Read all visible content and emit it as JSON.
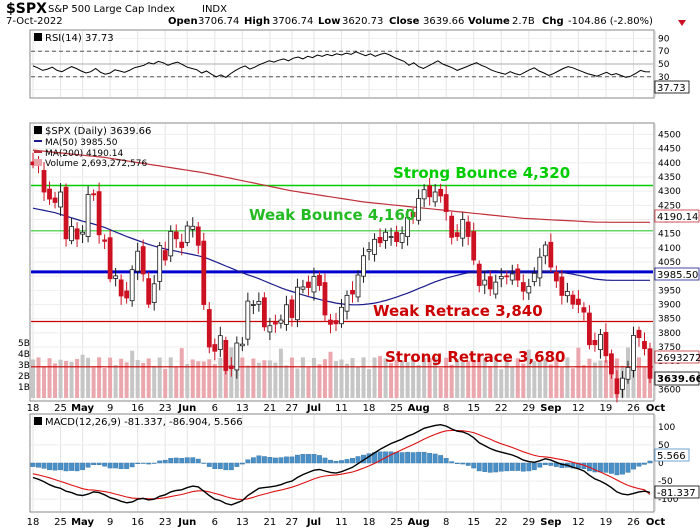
{
  "header": {
    "symbol": "$SPX",
    "name": "S&P 500 Large Cap Index",
    "exchange": "INDX",
    "date": "7-Oct-2022",
    "open_label": "Open",
    "open": "3706.74",
    "high_label": "High",
    "high": "3706.74",
    "low_label": "Low",
    "low": "3620.73",
    "close_label": "Close",
    "close": "3639.66",
    "volume_label": "Volume",
    "volume": "2.7B",
    "chg_label": "Chg",
    "chg": "-104.86 (-2.80%)",
    "chg_icon": "down-triangle-icon"
  },
  "colors": {
    "up": "#1a1a1a",
    "down": "#cc1122",
    "ma50": "#1a1a8c",
    "ma200": "#c0303a",
    "strong": "#00cc00",
    "weak": "#33cc33",
    "support_blue": "#0000cc",
    "retrace": "#cc0000",
    "macd_hist": "#4a90c8"
  },
  "chart_data": [
    {
      "panel": "rsi",
      "type": "line",
      "legend": "RSI(14) 37.73",
      "ylim": [
        0,
        100
      ],
      "yticks": [
        "90",
        "70",
        "50",
        "30",
        "10"
      ],
      "levels": [
        70,
        30
      ],
      "last_label": "37.73",
      "values": [
        47,
        44,
        40,
        42,
        45,
        40,
        38,
        42,
        46,
        43,
        39,
        36,
        38,
        43,
        37,
        34,
        36,
        41,
        39,
        37,
        40,
        44,
        46,
        48,
        52,
        50,
        54,
        52,
        48,
        51,
        53,
        49,
        45,
        43,
        41,
        36,
        39,
        34,
        30,
        33,
        29,
        35,
        40,
        44,
        47,
        42,
        45,
        49,
        52,
        55,
        53,
        56,
        58,
        55,
        59,
        61,
        58,
        62,
        60,
        64,
        62,
        65,
        63,
        66,
        64,
        67,
        65,
        69,
        66,
        63,
        66,
        62,
        65,
        67,
        64,
        60,
        57,
        54,
        48,
        52,
        46,
        43,
        47,
        51,
        55,
        50,
        47,
        44,
        40,
        43,
        46,
        49,
        52,
        48,
        45,
        41,
        38,
        36,
        34,
        38,
        35,
        33,
        37,
        41,
        44,
        39,
        36,
        32,
        35,
        39,
        43,
        46,
        44,
        41,
        38,
        35,
        33,
        31,
        34,
        37,
        33,
        35,
        32,
        29,
        31,
        35,
        40,
        38,
        37.73
      ]
    },
    {
      "panel": "price",
      "type": "candlestick",
      "legend": {
        "symbol": "$SPX (Daily) 3639.66",
        "ma50": "MA(50) 3985.50",
        "ma200": "MA(200) 4190.14",
        "volume": "Volume 2,693,272,576"
      },
      "ylim": [
        3570,
        4530
      ],
      "yticks": [
        "4500",
        "4450",
        "4400",
        "4350",
        "4300",
        "4250",
        "4200",
        "4150",
        "4100",
        "4050",
        "4000",
        "3950",
        "3900",
        "3850",
        "3800",
        "3750",
        "3700",
        "3650",
        "3600"
      ],
      "volume_ticks": [
        "5B",
        "4B",
        "3B",
        "2B",
        "1B"
      ],
      "right_labels": {
        "ma200": "4190.14",
        "ma50": "3985.50",
        "volume": "2693272",
        "close": "3639.66"
      },
      "levels": [
        {
          "label": "Strong Bounce 4,320",
          "value": 4320,
          "style": "strong"
        },
        {
          "label": "Weak Bounce 4,160",
          "value": 4160,
          "style": "weak"
        },
        {
          "label": "",
          "value": 4015,
          "style": "support_blue"
        },
        {
          "label": "Weak Retrace 3,840",
          "value": 3840,
          "style": "retrace"
        },
        {
          "label": "Strong Retrace 3,680",
          "value": 3680,
          "style": "retrace"
        }
      ],
      "x_ticks": [
        "18",
        "25",
        "May",
        "9",
        "16",
        "23",
        "Jun",
        "6",
        "13",
        "21",
        "27",
        "Jul",
        "11",
        "18",
        "25",
        "Aug",
        "8",
        "15",
        "22",
        "29",
        "Sep",
        "12",
        "19",
        "26",
        "Oct"
      ],
      "x_tick_index": [
        0,
        5,
        9,
        14,
        19,
        24,
        28,
        33,
        38,
        43,
        47,
        51,
        56,
        61,
        66,
        70,
        75,
        80,
        85,
        90,
        94,
        99,
        104,
        109,
        113
      ],
      "closes": [
        4393,
        4391,
        4297,
        4272,
        4260,
        4297,
        4132,
        4175,
        4131,
        4155,
        4288,
        4287,
        4146,
        4123,
        3991,
        4001,
        3930,
        3923,
        4023,
        4088,
        4008,
        3901,
        3973,
        4108,
        4057,
        4158,
        4132,
        4101,
        4177,
        4176,
        4109,
        3900,
        3750,
        3735,
        3790,
        3667,
        3674,
        3764,
        3760,
        3912,
        3900,
        3911,
        3821,
        3825,
        3831,
        3845,
        3899,
        3854,
        3961,
        3962,
        3960,
        3999,
        3967,
        3863,
        3830,
        3832,
        3890,
        3932,
        3937,
        4004,
        4072,
        4094,
        4130,
        4118,
        4155,
        4140,
        4122,
        4151,
        4207,
        4210,
        4274,
        4305,
        4280,
        4297,
        4283,
        4228,
        4137,
        4140,
        4200,
        4140,
        4057,
        3967,
        3986,
        3955,
        3979,
        3999,
        4001,
        4008,
        3986,
        3947,
        3964,
        4010,
        4067,
        4110,
        4032,
        3983,
        3932,
        3946,
        3901,
        3900,
        3873,
        3758,
        3758,
        3794,
        3719,
        3655,
        3585,
        3640,
        3678,
        3791,
        3783,
        3744,
        3639.66
      ],
      "ma50": [
        4240,
        4236,
        4232,
        4228,
        4224,
        4218,
        4212,
        4206,
        4200,
        4194,
        4189,
        4184,
        4178,
        4172,
        4164,
        4156,
        4148,
        4140,
        4133,
        4126,
        4119,
        4112,
        4106,
        4101,
        4096,
        4092,
        4088,
        4084,
        4080,
        4076,
        4072,
        4067,
        4060,
        4052,
        4044,
        4036,
        4028,
        4020,
        4012,
        4005,
        3998,
        3991,
        3983,
        3975,
        3967,
        3959,
        3952,
        3946,
        3940,
        3934,
        3928,
        3923,
        3918,
        3913,
        3909,
        3905,
        3902,
        3900,
        3899,
        3899,
        3900,
        3902,
        3905,
        3909,
        3914,
        3920,
        3926,
        3933,
        3940,
        3948,
        3956,
        3964,
        3972,
        3980,
        3987,
        3993,
        3998,
        4003,
        4008,
        4012,
        4015,
        4017,
        4018,
        4019,
        4019,
        4018,
        4017,
        4016,
        4015,
        4014,
        4014,
        4014,
        4015,
        4016,
        4016,
        4015,
        4013,
        4010,
        4007,
        4003,
        3999,
        3994,
        3990,
        3988,
        3986,
        3985.5,
        3985.5,
        3985.5,
        3985.5,
        3985.5,
        3985.5,
        3985.5,
        3985.5
      ],
      "ma200": [
        4445,
        4443,
        4441,
        4439,
        4437,
        4435,
        4433,
        4431,
        4429,
        4427,
        4425,
        4423,
        4421,
        4419,
        4416,
        4413,
        4410,
        4407,
        4404,
        4401,
        4398,
        4395,
        4392,
        4389,
        4386,
        4383,
        4380,
        4377,
        4374,
        4371,
        4368,
        4365,
        4361,
        4357,
        4353,
        4349,
        4345,
        4341,
        4337,
        4333,
        4329,
        4325,
        4321,
        4317,
        4313,
        4309,
        4305,
        4301,
        4298,
        4295,
        4292,
        4289,
        4286,
        4283,
        4280,
        4277,
        4274,
        4271,
        4268,
        4265,
        4262,
        4260,
        4258,
        4256,
        4254,
        4252,
        4250,
        4248,
        4246,
        4244,
        4242,
        4240,
        4238,
        4236,
        4234,
        4232,
        4230,
        4228,
        4226,
        4224,
        4222,
        4220,
        4218,
        4216,
        4214,
        4212,
        4210,
        4208,
        4206,
        4204,
        4203,
        4202,
        4201,
        4200,
        4199,
        4198,
        4197,
        4196,
        4195,
        4194,
        4193,
        4192,
        4191,
        4190.5,
        4190.3,
        4190.2,
        4190.14,
        4190.14,
        4190.14,
        4190.14,
        4190.14,
        4190.14,
        4190.14
      ]
    },
    {
      "panel": "macd",
      "type": "line",
      "legend": "MACD(12,26,9) -81.337, -86.904, 5.566",
      "ylim": [
        -130,
        130
      ],
      "yticks": [
        "100",
        "50",
        "0",
        "-50",
        "-100"
      ],
      "right_labels": {
        "hist": "5.566",
        "macd": "-81.337"
      },
      "macd": [
        -40,
        -45,
        -52,
        -60,
        -66,
        -70,
        -78,
        -82,
        -88,
        -90,
        -86,
        -80,
        -82,
        -88,
        -96,
        -100,
        -106,
        -110,
        -108,
        -100,
        -98,
        -102,
        -100,
        -92,
        -88,
        -80,
        -76,
        -74,
        -68,
        -64,
        -66,
        -78,
        -90,
        -100,
        -104,
        -112,
        -116,
        -110,
        -104,
        -90,
        -80,
        -70,
        -68,
        -66,
        -64,
        -60,
        -54,
        -50,
        -40,
        -32,
        -26,
        -20,
        -18,
        -22,
        -26,
        -28,
        -24,
        -18,
        -12,
        -2,
        8,
        18,
        28,
        38,
        46,
        54,
        60,
        66,
        74,
        80,
        88,
        96,
        100,
        104,
        106,
        102,
        94,
        88,
        86,
        80,
        70,
        56,
        48,
        40,
        34,
        30,
        26,
        22,
        16,
        8,
        4,
        2,
        6,
        12,
        8,
        2,
        -4,
        -6,
        -12,
        -16,
        -22,
        -34,
        -44,
        -50,
        -58,
        -68,
        -80,
        -86,
        -88,
        -84,
        -80,
        -78,
        -81.337
      ],
      "signal": [
        -30,
        -33,
        -37,
        -41,
        -46,
        -51,
        -56,
        -61,
        -66,
        -71,
        -74,
        -75,
        -77,
        -79,
        -82,
        -86,
        -90,
        -94,
        -97,
        -98,
        -98,
        -99,
        -99,
        -98,
        -96,
        -93,
        -90,
        -87,
        -83,
        -79,
        -77,
        -77,
        -80,
        -84,
        -88,
        -93,
        -97,
        -100,
        -101,
        -99,
        -95,
        -90,
        -86,
        -82,
        -78,
        -75,
        -71,
        -67,
        -62,
        -56,
        -50,
        -44,
        -39,
        -36,
        -34,
        -33,
        -31,
        -28,
        -25,
        -20,
        -14,
        -8,
        -1,
        7,
        15,
        23,
        30,
        37,
        44,
        51,
        58,
        66,
        73,
        79,
        85,
        89,
        90,
        90,
        89,
        87,
        84,
        78,
        72,
        66,
        59,
        53,
        48,
        43,
        37,
        31,
        26,
        21,
        18,
        17,
        15,
        12,
        9,
        6,
        2,
        -2,
        -6,
        -12,
        -19,
        -25,
        -32,
        -39,
        -47,
        -55,
        -62,
        -67,
        -71,
        -74,
        -86.904
      ],
      "hist": [
        -10,
        -12,
        -15,
        -19,
        -20,
        -19,
        -22,
        -21,
        -22,
        -19,
        -12,
        -5,
        -5,
        -9,
        -14,
        -14,
        -16,
        -16,
        -11,
        -2,
        0,
        -3,
        -1,
        6,
        8,
        13,
        14,
        13,
        15,
        15,
        11,
        -1,
        -10,
        -16,
        -16,
        -19,
        -19,
        -10,
        -3,
        9,
        15,
        20,
        18,
        16,
        14,
        15,
        17,
        17,
        22,
        24,
        24,
        24,
        21,
        14,
        8,
        5,
        7,
        10,
        13,
        18,
        22,
        26,
        29,
        31,
        31,
        31,
        30,
        29,
        30,
        29,
        30,
        30,
        27,
        25,
        21,
        13,
        4,
        -2,
        -3,
        -7,
        -14,
        -22,
        -24,
        -26,
        -25,
        -23,
        -22,
        -21,
        -21,
        -23,
        -22,
        -19,
        -12,
        -5,
        -7,
        -10,
        -13,
        -12,
        -14,
        -14,
        -16,
        -22,
        -25,
        -25,
        -26,
        -29,
        -33,
        -31,
        -26,
        -17,
        -9,
        -4,
        5.566
      ],
      "x_ticks": [
        "18",
        "25",
        "May",
        "9",
        "16",
        "23",
        "Jun",
        "6",
        "13",
        "21",
        "27",
        "Jul",
        "11",
        "18",
        "25",
        "Aug",
        "8",
        "15",
        "22",
        "29",
        "Sep",
        "12",
        "19",
        "26",
        "Oct"
      ]
    }
  ],
  "annotations": {
    "strong_bounce": "Strong Bounce 4,320",
    "weak_bounce": "Weak Bounce 4,160",
    "weak_retrace": "Weak Retrace 3,840",
    "strong_retrace": "Strong Retrace 3,680"
  }
}
